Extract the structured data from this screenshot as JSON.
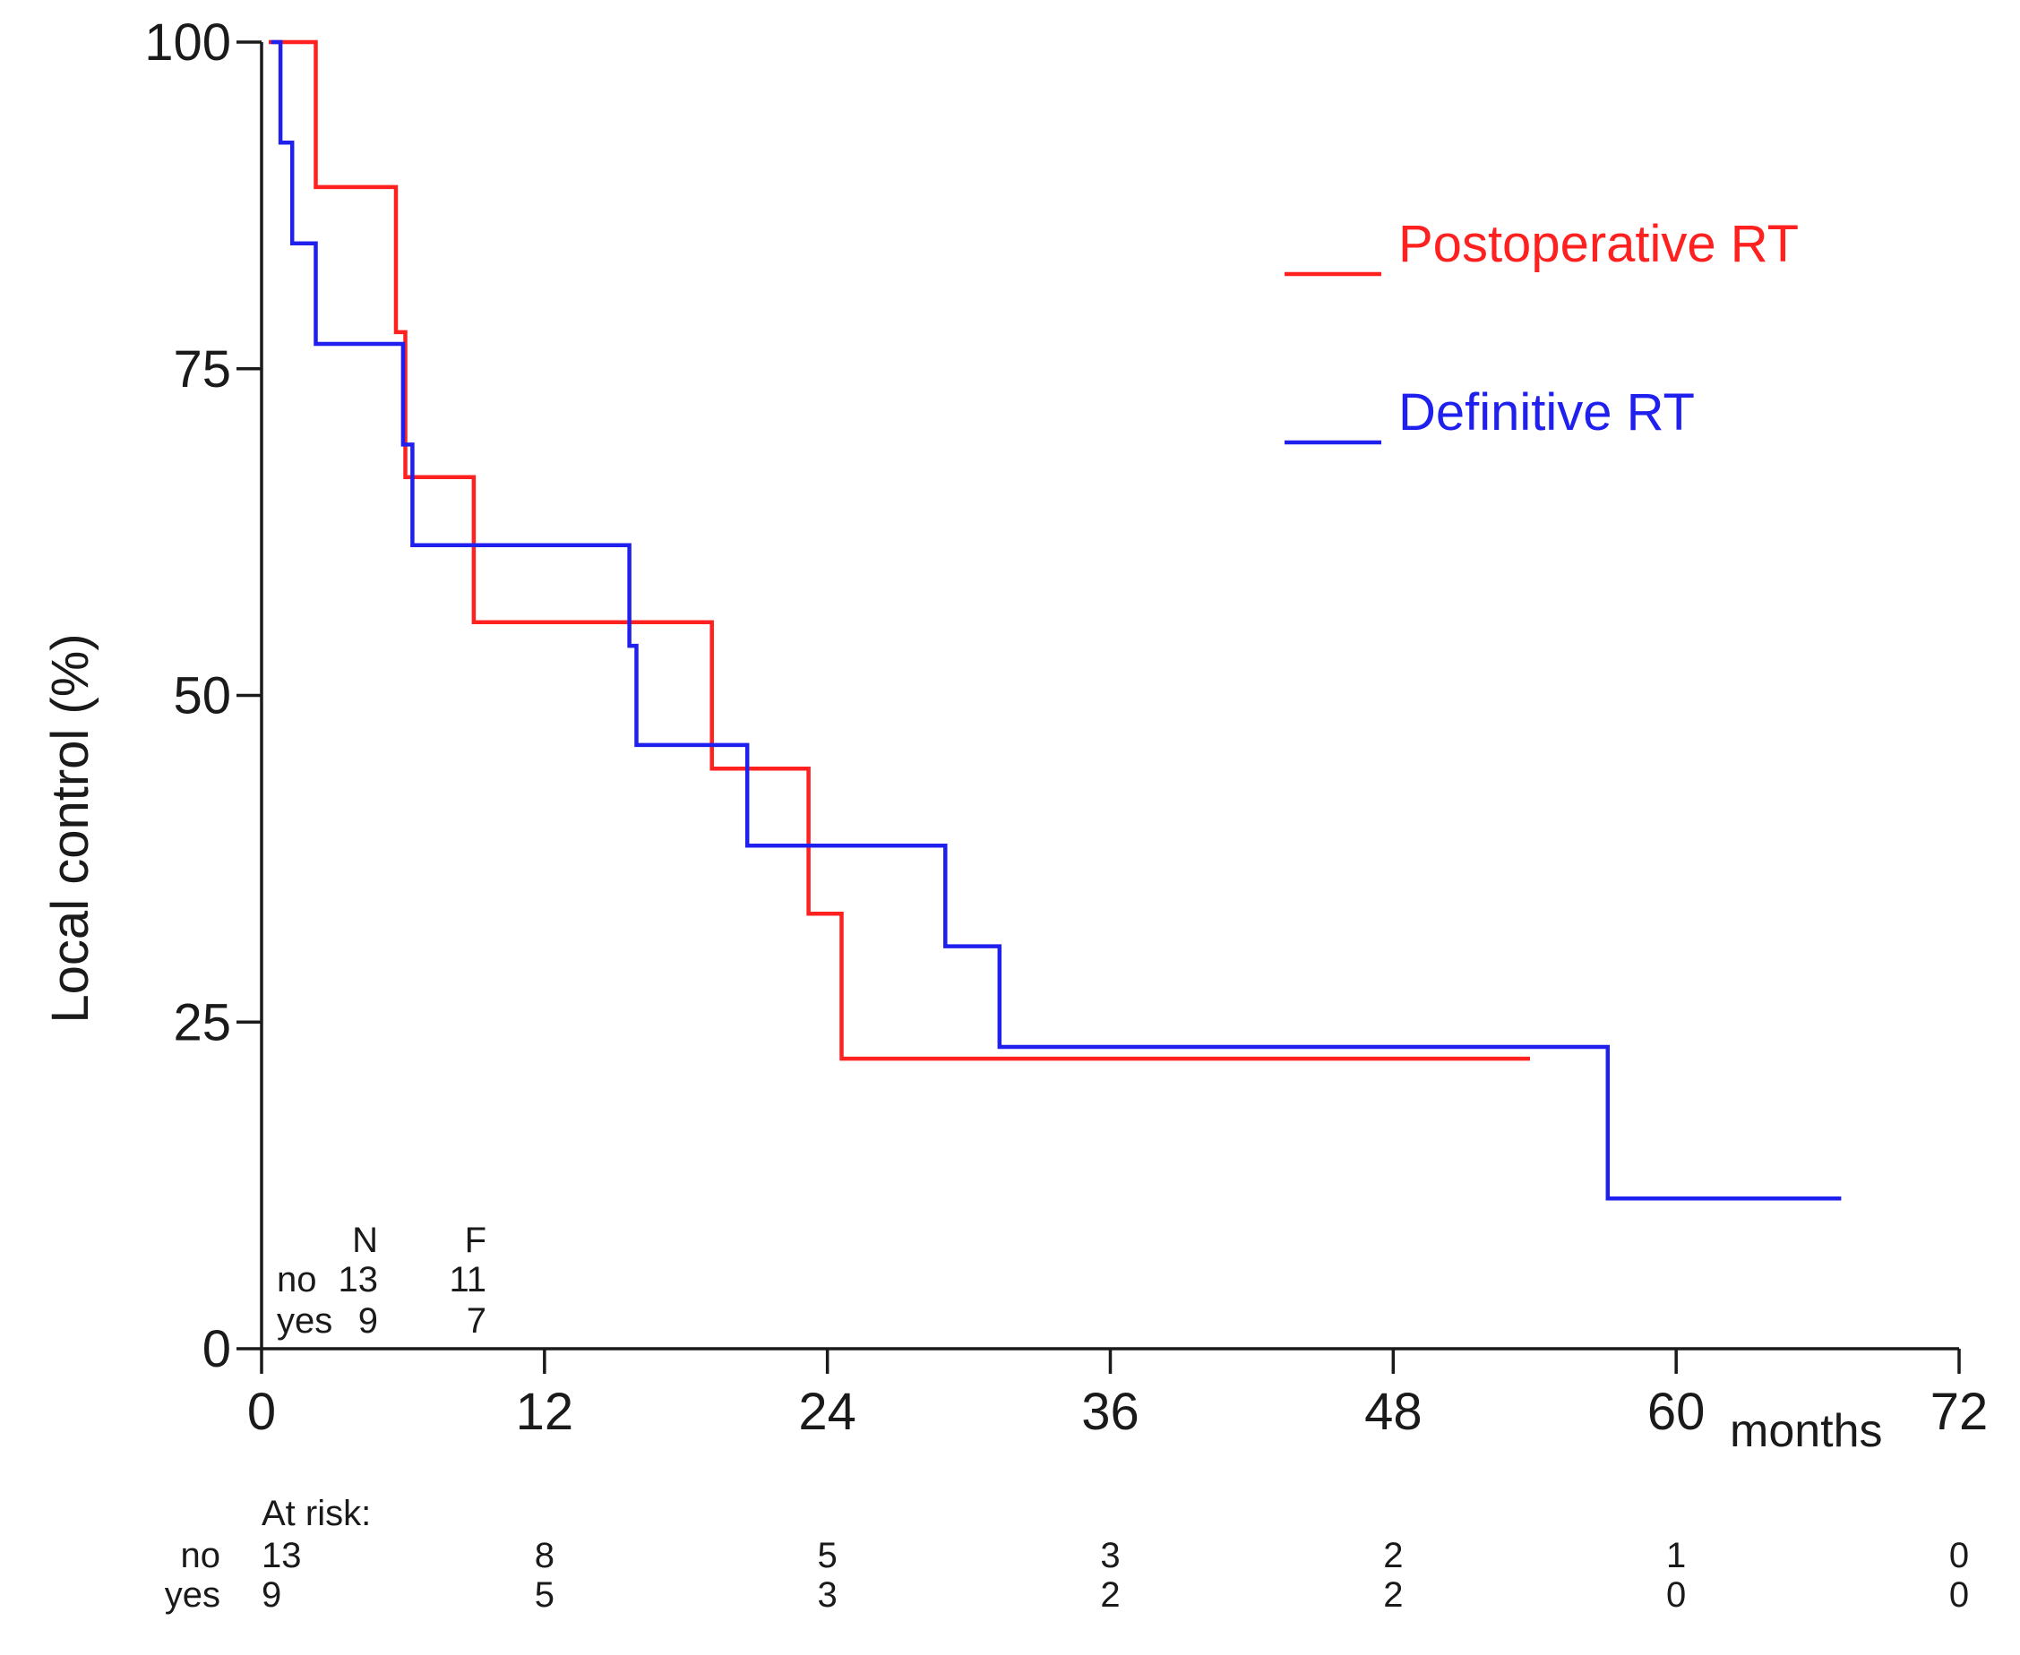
{
  "chart_data": {
    "type": "line",
    "subtype": "kaplan-meier-step",
    "title": "",
    "ylabel": "Local control (%)",
    "xlabel": "months",
    "xlim": [
      0,
      72
    ],
    "ylim": [
      0,
      100
    ],
    "xticks": [
      0,
      12,
      24,
      36,
      48,
      60,
      72
    ],
    "yticks": [
      0,
      25,
      50,
      75,
      100
    ],
    "series": [
      {
        "name": "Postoperative RT",
        "color": "#ff2020",
        "points": [
          [
            0.3,
            100
          ],
          [
            2.3,
            100
          ],
          [
            2.3,
            88.9
          ],
          [
            5.7,
            88.9
          ],
          [
            5.7,
            77.8
          ],
          [
            6.1,
            77.8
          ],
          [
            6.1,
            66.7
          ],
          [
            9.0,
            66.7
          ],
          [
            9.0,
            55.6
          ],
          [
            19.1,
            55.6
          ],
          [
            19.1,
            44.4
          ],
          [
            23.2,
            44.4
          ],
          [
            23.2,
            33.3
          ],
          [
            24.6,
            33.3
          ],
          [
            24.6,
            22.2
          ],
          [
            53.8,
            22.2
          ]
        ]
      },
      {
        "name": "Definitive RT",
        "color": "#2020ee",
        "points": [
          [
            0.4,
            100
          ],
          [
            0.8,
            100
          ],
          [
            0.8,
            92.3
          ],
          [
            1.3,
            92.3
          ],
          [
            1.3,
            84.6
          ],
          [
            2.3,
            84.6
          ],
          [
            2.3,
            76.9
          ],
          [
            6.0,
            76.9
          ],
          [
            6.0,
            69.2
          ],
          [
            6.4,
            69.2
          ],
          [
            6.4,
            61.5
          ],
          [
            15.6,
            61.5
          ],
          [
            15.6,
            53.8
          ],
          [
            15.9,
            53.8
          ],
          [
            15.9,
            46.2
          ],
          [
            20.6,
            46.2
          ],
          [
            20.6,
            38.5
          ],
          [
            29.0,
            38.5
          ],
          [
            29.0,
            30.8
          ],
          [
            31.3,
            30.8
          ],
          [
            31.3,
            23.1
          ],
          [
            57.1,
            23.1
          ],
          [
            57.1,
            11.5
          ],
          [
            67.0,
            11.5
          ]
        ]
      }
    ],
    "legend": {
      "position": "top-right",
      "entries": [
        "Postoperative RT",
        "Definitive RT"
      ]
    },
    "counts_table": {
      "header_n": "N",
      "header_f": "F",
      "rows": [
        {
          "label": "no",
          "n": "13",
          "f": "11"
        },
        {
          "label": "yes",
          "n": "9",
          "f": "7"
        }
      ]
    },
    "at_risk": {
      "title": "At risk:",
      "times": [
        0,
        12,
        24,
        36,
        48,
        60,
        72
      ],
      "rows": [
        {
          "label": "no",
          "values": [
            "13",
            "8",
            "5",
            "3",
            "2",
            "1",
            "0"
          ]
        },
        {
          "label": "yes",
          "values": [
            "9",
            "5",
            "3",
            "2",
            "2",
            "0",
            "0"
          ]
        }
      ]
    }
  }
}
